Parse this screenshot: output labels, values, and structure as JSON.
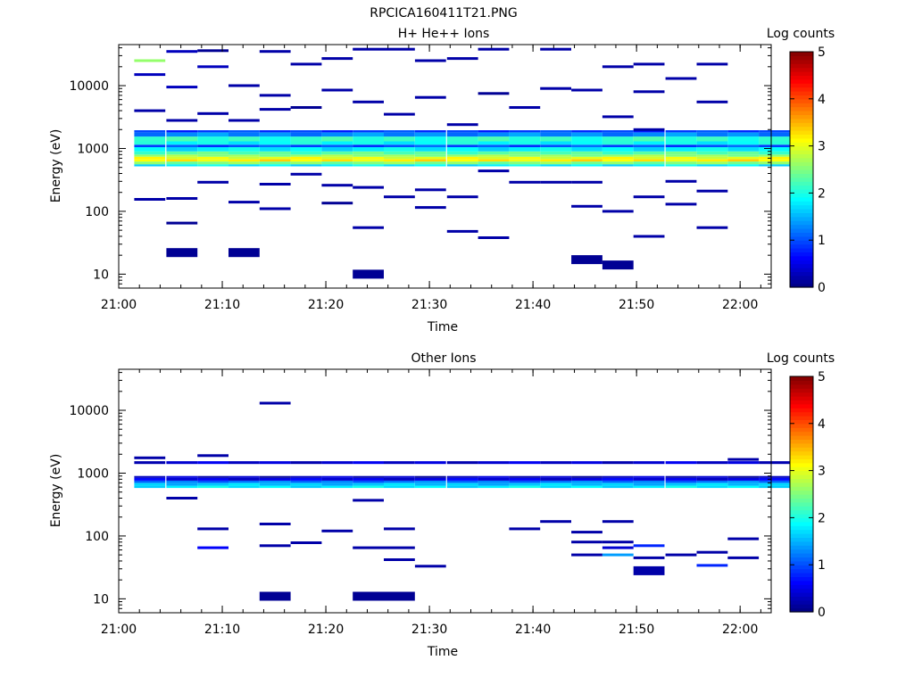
{
  "figure_title": "RPCICA160411T21.PNG",
  "chart_data": [
    {
      "type": "heatmap",
      "title": "H+ He++ Ions",
      "xlabel": "Time",
      "ylabel": "Energy (eV)",
      "x_range": [
        "21:00",
        "22:03"
      ],
      "y_range": [
        6,
        45000
      ],
      "y_scale": "log",
      "x_ticks": [
        "21:00",
        "21:10",
        "21:20",
        "21:30",
        "21:40",
        "21:50",
        "22:00"
      ],
      "y_ticks": [
        "10",
        "100",
        "1000",
        "10000"
      ],
      "colorbar": {
        "label": "Log counts",
        "range": [
          0,
          5
        ],
        "ticks": [
          "0",
          "1",
          "2",
          "3",
          "4",
          "5"
        ]
      },
      "time_bins_start_min": [
        1.5,
        4.6,
        7.6,
        10.6,
        13.6,
        16.6,
        19.6,
        22.6,
        25.6,
        28.6,
        31.7,
        34.7,
        37.7,
        40.7,
        43.7,
        46.7,
        49.7,
        52.8,
        55.8,
        58.8,
        61.8
      ],
      "time_bin_width_min": 3.0,
      "cells": [
        [
          1.5,
          25000,
          2.6
        ],
        [
          1.5,
          15000,
          0.3
        ],
        [
          1.5,
          4000,
          0.2
        ],
        [
          1.5,
          155,
          0.2
        ],
        [
          4.6,
          35000,
          0.3
        ],
        [
          4.6,
          9500,
          0.3
        ],
        [
          4.6,
          2800,
          0.2
        ],
        [
          4.6,
          160,
          0.2
        ],
        [
          4.6,
          65,
          0.1
        ],
        [
          4.6,
          22,
          0.1
        ],
        [
          7.6,
          36000,
          0.1
        ],
        [
          7.6,
          20000,
          0.3
        ],
        [
          7.6,
          3600,
          0.2
        ],
        [
          7.6,
          290,
          0.2
        ],
        [
          10.6,
          10000,
          0.2
        ],
        [
          10.6,
          2800,
          0.2
        ],
        [
          10.6,
          140,
          0.2
        ],
        [
          10.6,
          22,
          0.1
        ],
        [
          13.6,
          35000,
          0.2
        ],
        [
          13.6,
          7000,
          0.2
        ],
        [
          13.6,
          4200,
          0.2
        ],
        [
          13.6,
          270,
          0.2
        ],
        [
          13.6,
          110,
          0.2
        ],
        [
          16.6,
          22000,
          0.2
        ],
        [
          16.6,
          4500,
          0.1
        ],
        [
          16.6,
          390,
          0.2
        ],
        [
          19.6,
          27000,
          0.2
        ],
        [
          19.6,
          8500,
          0.2
        ],
        [
          19.6,
          260,
          0.2
        ],
        [
          19.6,
          135,
          0.1
        ],
        [
          22.6,
          38000,
          0.2
        ],
        [
          22.6,
          5500,
          0.2
        ],
        [
          22.6,
          240,
          0.2
        ],
        [
          22.6,
          55,
          0.2
        ],
        [
          22.6,
          10,
          0.1
        ],
        [
          25.6,
          38000,
          0.2
        ],
        [
          25.6,
          3500,
          0.2
        ],
        [
          25.6,
          170,
          0.2
        ],
        [
          28.6,
          25000,
          0.2
        ],
        [
          28.6,
          6500,
          0.2
        ],
        [
          28.6,
          220,
          0.2
        ],
        [
          28.6,
          115,
          0.2
        ],
        [
          31.7,
          27000,
          0.2
        ],
        [
          31.7,
          2400,
          0.2
        ],
        [
          31.7,
          170,
          0.2
        ],
        [
          31.7,
          48,
          0.2
        ],
        [
          34.7,
          38000,
          0.2
        ],
        [
          34.7,
          7500,
          0.1
        ],
        [
          34.7,
          440,
          0.2
        ],
        [
          34.7,
          38,
          0.2
        ],
        [
          37.7,
          4500,
          0.2
        ],
        [
          37.7,
          290,
          0.2
        ],
        [
          40.7,
          38000,
          0.2
        ],
        [
          40.7,
          9000,
          0.2
        ],
        [
          40.7,
          290,
          0.2
        ],
        [
          43.7,
          8500,
          0.2
        ],
        [
          43.7,
          290,
          0.2
        ],
        [
          43.7,
          120,
          0.2
        ],
        [
          43.7,
          17,
          0.1
        ],
        [
          46.7,
          20000,
          0.2
        ],
        [
          46.7,
          3200,
          0.2
        ],
        [
          46.7,
          100,
          0.2
        ],
        [
          46.7,
          14,
          0.1
        ],
        [
          49.7,
          22000,
          0.2
        ],
        [
          49.7,
          8000,
          0.2
        ],
        [
          49.7,
          2000,
          0.2
        ],
        [
          49.7,
          170,
          0.2
        ],
        [
          49.7,
          40,
          0.2
        ],
        [
          52.8,
          13000,
          0.2
        ],
        [
          52.8,
          300,
          0.2
        ],
        [
          52.8,
          130,
          0.2
        ],
        [
          55.8,
          22000,
          0.2
        ],
        [
          55.8,
          5500,
          0.2
        ],
        [
          55.8,
          210,
          0.2
        ],
        [
          55.8,
          55,
          0.2
        ]
      ],
      "bands": [
        [
          520,
          560,
          1.8
        ],
        [
          560,
          620,
          2.5
        ],
        [
          620,
          680,
          3.2
        ],
        [
          680,
          740,
          3.0
        ],
        [
          740,
          800,
          2.6
        ],
        [
          800,
          900,
          2.3
        ],
        [
          900,
          1050,
          1.8
        ],
        [
          1050,
          1150,
          1.0
        ],
        [
          1150,
          1300,
          1.9
        ],
        [
          1300,
          1550,
          2.1
        ],
        [
          1550,
          1800,
          1.3
        ],
        [
          1800,
          1950,
          0.9
        ]
      ]
    },
    {
      "type": "heatmap",
      "title": "Other Ions",
      "xlabel": "Time",
      "ylabel": "Energy (eV)",
      "x_range": [
        "21:00",
        "22:03"
      ],
      "y_range": [
        6,
        45000
      ],
      "y_scale": "log",
      "x_ticks": [
        "21:00",
        "21:10",
        "21:20",
        "21:30",
        "21:40",
        "21:50",
        "22:00"
      ],
      "y_ticks": [
        "10",
        "100",
        "1000",
        "10000"
      ],
      "colorbar": {
        "label": "Log counts",
        "range": [
          0,
          5
        ],
        "ticks": [
          "0",
          "1",
          "2",
          "3",
          "4",
          "5"
        ]
      },
      "time_bins_start_min": [
        1.5,
        4.6,
        7.6,
        10.6,
        13.6,
        16.6,
        19.6,
        22.6,
        25.6,
        28.6,
        31.7,
        34.7,
        37.7,
        40.7,
        43.7,
        46.7,
        49.7,
        52.8,
        55.8,
        58.8,
        61.8
      ],
      "time_bin_width_min": 3.0,
      "cells": [
        [
          1.5,
          1750,
          0.2
        ],
        [
          4.6,
          400,
          0.2
        ],
        [
          7.6,
          1900,
          0.2
        ],
        [
          7.6,
          130,
          0.2
        ],
        [
          7.6,
          65,
          0.6
        ],
        [
          13.6,
          13000,
          0.2
        ],
        [
          13.6,
          155,
          0.2
        ],
        [
          13.6,
          70,
          0.2
        ],
        [
          13.6,
          11,
          0.1
        ],
        [
          16.6,
          78,
          0.2
        ],
        [
          19.6,
          120,
          0.2
        ],
        [
          22.6,
          370,
          0.2
        ],
        [
          22.6,
          65,
          0.2
        ],
        [
          22.6,
          11,
          0.1
        ],
        [
          25.6,
          130,
          0.2
        ],
        [
          25.6,
          65,
          0.2
        ],
        [
          25.6,
          42,
          0.2
        ],
        [
          25.6,
          11,
          0.1
        ],
        [
          28.6,
          33,
          0.2
        ],
        [
          37.7,
          130,
          0.2
        ],
        [
          40.7,
          170,
          0.2
        ],
        [
          43.7,
          115,
          0.2
        ],
        [
          43.7,
          80,
          0.2
        ],
        [
          43.7,
          50,
          0.2
        ],
        [
          46.7,
          170,
          0.2
        ],
        [
          46.7,
          80,
          0.2
        ],
        [
          46.7,
          65,
          0.4
        ],
        [
          46.7,
          50,
          1.4
        ],
        [
          49.7,
          70,
          0.8
        ],
        [
          49.7,
          45,
          0.2
        ],
        [
          49.7,
          28,
          0.2
        ],
        [
          52.8,
          50,
          0.2
        ],
        [
          55.8,
          55,
          0.2
        ],
        [
          55.8,
          34,
          0.8
        ],
        [
          58.8,
          1650,
          0.2
        ],
        [
          58.8,
          90,
          0.2
        ],
        [
          58.8,
          45,
          0.2
        ]
      ],
      "bands": [
        [
          580,
          630,
          1.8
        ],
        [
          630,
          700,
          1.6
        ],
        [
          700,
          760,
          1.2
        ],
        [
          760,
          840,
          0.5
        ],
        [
          840,
          900,
          0.3
        ],
        [
          1400,
          1550,
          0.4
        ]
      ]
    }
  ]
}
